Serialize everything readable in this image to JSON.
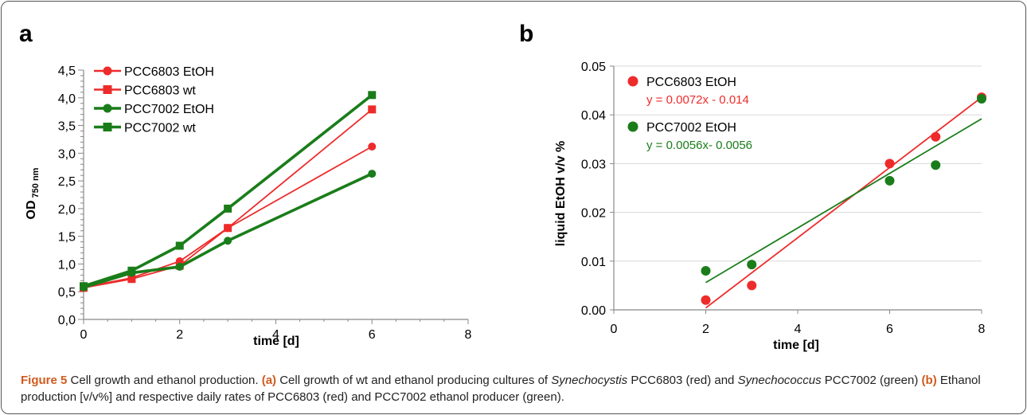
{
  "chart_data": [
    {
      "type": "line",
      "panel": "a",
      "xlabel": "time [d]",
      "ylabel_main": "OD",
      "ylabel_sub": "750 nm",
      "xlim": [
        0,
        8
      ],
      "ylim": [
        0,
        4.5
      ],
      "x_ticks": [
        "0",
        "2",
        "4",
        "6",
        "8"
      ],
      "y_ticks": [
        "0,0",
        "0,5",
        "1,0",
        "1,5",
        "2,0",
        "2,5",
        "3,0",
        "3,5",
        "4,0",
        "4,5"
      ],
      "legend_position": "top-left",
      "series": [
        {
          "name": "PCC6803 EtOH",
          "color": "#ee2b2b",
          "marker": "circle",
          "x": [
            0,
            1,
            2,
            3,
            6
          ],
          "y": [
            0.58,
            0.75,
            1.05,
            1.65,
            3.12
          ]
        },
        {
          "name": "PCC6803 wt",
          "color": "#ee2b2b",
          "marker": "square",
          "x": [
            0,
            1,
            2,
            3,
            6
          ],
          "y": [
            0.57,
            0.73,
            0.97,
            1.65,
            3.79
          ]
        },
        {
          "name": "PCC7002 EtOH",
          "color": "#1a7d1a",
          "marker": "circle",
          "x": [
            0,
            1,
            2,
            3,
            6
          ],
          "y": [
            0.58,
            0.84,
            0.95,
            1.42,
            2.63
          ]
        },
        {
          "name": "PCC7002 wt",
          "color": "#1a7d1a",
          "marker": "square",
          "x": [
            0,
            1,
            2,
            3,
            6
          ],
          "y": [
            0.6,
            0.88,
            1.33,
            2.0,
            4.05
          ]
        }
      ]
    },
    {
      "type": "scatter",
      "panel": "b",
      "xlabel": "time [d]",
      "ylabel": "liquid EtOH v/v %",
      "xlim": [
        0,
        8
      ],
      "ylim": [
        0,
        0.05
      ],
      "x_ticks": [
        "0",
        "2",
        "4",
        "6",
        "8"
      ],
      "y_ticks": [
        "0.00",
        "0.01",
        "0.02",
        "0.03",
        "0.04",
        "0.05"
      ],
      "legend_position": "top-left",
      "series": [
        {
          "name": "PCC6803 EtOH",
          "color": "#ee2b2b",
          "equation": "y = 0.0072x - 0.014",
          "trend": [
            0.0072,
            -0.014
          ],
          "trend_x": [
            2,
            8
          ],
          "x": [
            2,
            3,
            6,
            7,
            8
          ],
          "y": [
            0.002,
            0.005,
            0.03,
            0.0355,
            0.0436
          ]
        },
        {
          "name": "PCC7002 EtOH",
          "color": "#1a7d1a",
          "equation": "y = 0.0056x- 0.0056",
          "trend": [
            0.0056,
            -0.0056
          ],
          "trend_x": [
            2,
            8
          ],
          "x": [
            2,
            3,
            6,
            7,
            8
          ],
          "y": [
            0.008,
            0.0093,
            0.0265,
            0.0297,
            0.0433
          ]
        }
      ]
    }
  ],
  "caption": {
    "figure_label": "Figure 5",
    "title": "Cell growth and ethanol production.",
    "ref_a": "(a)",
    "text_a1": "Cell growth of wt and ethanol producing cultures of",
    "species_1": "Synechocystis",
    "text_a2": "PCC6803 (red) and",
    "species_2": "Synechococcus",
    "text_a3": "PCC7002 (green)",
    "ref_b": "(b)",
    "text_b": "Ethanol production [v/v%] and respective daily rates of PCC6803 (red) and PCC7002 ethanol producer (green)."
  }
}
